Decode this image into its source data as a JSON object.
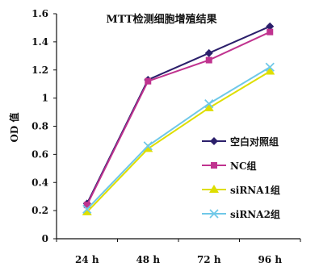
{
  "chart_data": {
    "type": "line",
    "title": "MTT检测细胞增殖结果",
    "ylabel": "OD 值",
    "xlabel": "",
    "categories": [
      "24 h",
      "48 h",
      "72 h",
      "96 h"
    ],
    "ylim": [
      0,
      1.6
    ],
    "yticks": [
      0,
      0.2,
      0.4,
      0.6,
      0.8,
      1,
      1.2,
      1.4,
      1.6
    ],
    "ytick_labels": [
      "0",
      "0.2",
      "0.4",
      "0.6",
      "0.8",
      "1",
      "1.2",
      "1.4",
      "1.6"
    ],
    "grid": false,
    "legend_position": "right",
    "series": [
      {
        "name": "空白对照组",
        "values": [
          0.25,
          1.13,
          1.32,
          1.51
        ],
        "color": "#2b1f6b",
        "marker": "diamond"
      },
      {
        "name": "NC组",
        "values": [
          0.24,
          1.12,
          1.27,
          1.47
        ],
        "color": "#c0338f",
        "marker": "square"
      },
      {
        "name": "siRNA1组",
        "values": [
          0.19,
          0.64,
          0.93,
          1.19
        ],
        "color": "#dede00",
        "marker": "triangle"
      },
      {
        "name": "siRNA2组",
        "values": [
          0.21,
          0.66,
          0.96,
          1.22
        ],
        "color": "#6fc8e8",
        "marker": "x"
      }
    ]
  }
}
